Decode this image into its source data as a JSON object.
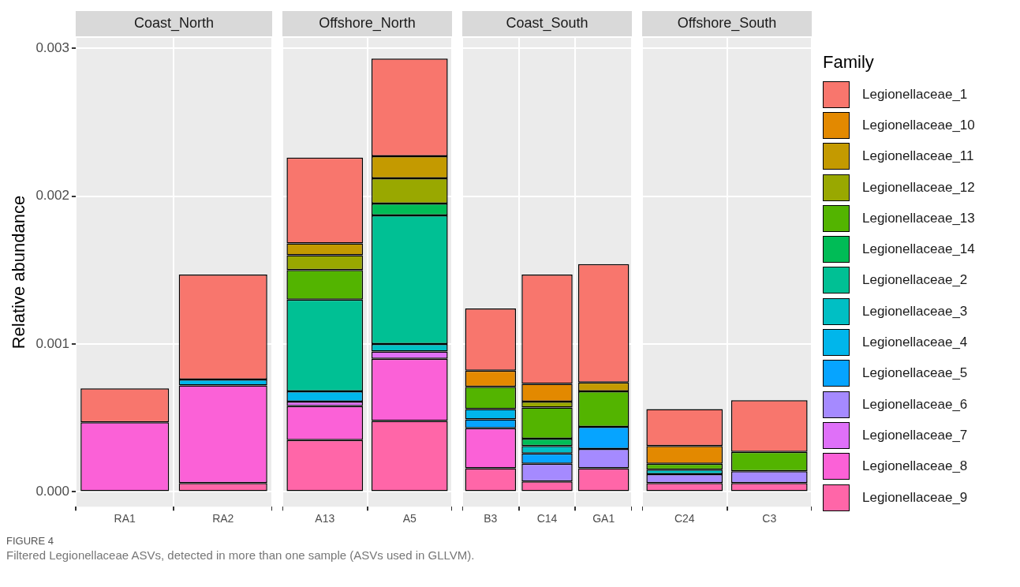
{
  "chart_data": [
    {
      "type": "bar",
      "stacked": true,
      "title": "Coast_North",
      "ylabel": "Relative abundance",
      "categories": [
        "RA1",
        "RA2"
      ],
      "ylim": [
        -0.0001,
        0.00307
      ],
      "yticks": [
        {
          "value": 0,
          "label": "0.000"
        },
        {
          "value": 0.001,
          "label": "0.001"
        },
        {
          "value": 0.002,
          "label": "0.002"
        },
        {
          "value": 0.003,
          "label": "0.003"
        }
      ],
      "grid": true,
      "annotations": [
        "FIGURE 4",
        "Filtered Legionellaceae ASVs, detected in more than one sample (ASVs used in GLLVM)."
      ],
      "series": [
        {
          "color": "#ff66a8",
          "values": [
            null,
            6e-05
          ]
        },
        {
          "color": "#fb61d7",
          "values": [
            0.00047,
            0.00066
          ]
        },
        {
          "color": "#df70f8",
          "values": [
            null,
            null
          ]
        },
        {
          "color": "#a58aff",
          "values": [
            null,
            null
          ]
        },
        {
          "color": "#06a4ff",
          "values": [
            null,
            null
          ]
        },
        {
          "color": "#00b6eb",
          "values": [
            null,
            4e-05
          ]
        },
        {
          "color": "#00bfc4",
          "values": [
            null,
            null
          ]
        },
        {
          "color": "#00c094",
          "values": [
            null,
            null
          ]
        },
        {
          "color": "#00bc56",
          "values": [
            null,
            null
          ]
        },
        {
          "color": "#53b400",
          "values": [
            null,
            null
          ]
        },
        {
          "color": "#99a800",
          "values": [
            null,
            null
          ]
        },
        {
          "color": "#c49a00",
          "values": [
            null,
            null
          ]
        },
        {
          "color": "#e38900",
          "values": [
            null,
            null
          ]
        },
        {
          "color": "#f8766d",
          "values": [
            0.00023,
            0.00071
          ]
        }
      ]
    },
    {
      "type": "bar",
      "stacked": true,
      "title": "Offshore_North",
      "categories": [
        "A13",
        "A5"
      ],
      "ylim": [
        -0.0001,
        0.00307
      ],
      "yticks": [
        0,
        0.001,
        0.002,
        0.003
      ],
      "tick_labels": "x",
      "grid": true,
      "series": [
        {
          "color": "#ff66a8",
          "values": [
            0.00035,
            0.00048
          ]
        },
        {
          "color": "#fb61d7",
          "values": [
            0.00023,
            0.00042
          ]
        },
        {
          "color": "#df70f8",
          "values": [
            3e-05,
            5e-05
          ]
        },
        {
          "color": "#a58aff",
          "values": [
            null,
            null
          ]
        },
        {
          "color": "#06a4ff",
          "values": [
            null,
            null
          ]
        },
        {
          "color": "#00b6eb",
          "values": [
            7e-05,
            null
          ]
        },
        {
          "color": "#00bfc4",
          "values": [
            null,
            5e-05
          ]
        },
        {
          "color": "#00c094",
          "values": [
            0.00062,
            0.00087
          ]
        },
        {
          "color": "#00bc56",
          "values": [
            null,
            8e-05
          ]
        },
        {
          "color": "#53b400",
          "values": [
            0.0002,
            null
          ]
        },
        {
          "color": "#99a800",
          "values": [
            0.0001,
            0.00017
          ]
        },
        {
          "color": "#c49a00",
          "values": [
            8e-05,
            0.00015
          ]
        },
        {
          "color": "#e38900",
          "values": [
            null,
            null
          ]
        },
        {
          "color": "#f8766d",
          "values": [
            0.00058,
            0.00066
          ]
        }
      ]
    },
    {
      "type": "bar",
      "stacked": true,
      "title": "Coast_South",
      "categories": [
        "B3",
        "C14",
        "GA1"
      ],
      "ylim": [
        -0.0001,
        0.00307
      ],
      "yticks": [
        0,
        0.001,
        0.002,
        0.003
      ],
      "tick_labels": "x",
      "grid": true,
      "series": [
        {
          "color": "#ff66a8",
          "values": [
            0.00016,
            7e-05,
            0.00016
          ]
        },
        {
          "color": "#fb61d7",
          "values": [
            0.00027,
            null,
            null
          ]
        },
        {
          "color": "#df70f8",
          "values": [
            null,
            null,
            null
          ]
        },
        {
          "color": "#a58aff",
          "values": [
            null,
            0.00012,
            0.00013
          ]
        },
        {
          "color": "#06a4ff",
          "values": [
            6e-05,
            7e-05,
            0.00015
          ]
        },
        {
          "color": "#00b6eb",
          "values": [
            7e-05,
            null,
            null
          ]
        },
        {
          "color": "#00bfc4",
          "values": [
            null,
            5e-05,
            null
          ]
        },
        {
          "color": "#00c094",
          "values": [
            null,
            null,
            null
          ]
        },
        {
          "color": "#00bc56",
          "values": [
            null,
            5e-05,
            null
          ]
        },
        {
          "color": "#53b400",
          "values": [
            0.00015,
            0.00021,
            0.00024
          ]
        },
        {
          "color": "#99a800",
          "values": [
            null,
            4e-05,
            null
          ]
        },
        {
          "color": "#c49a00",
          "values": [
            null,
            null,
            6e-05
          ]
        },
        {
          "color": "#e38900",
          "values": [
            0.00011,
            0.00012,
            null
          ]
        },
        {
          "color": "#f8766d",
          "values": [
            0.00042,
            0.00074,
            0.0008
          ]
        }
      ]
    },
    {
      "type": "bar",
      "stacked": true,
      "title": "Offshore_South",
      "categories": [
        "C24",
        "C3"
      ],
      "ylim": [
        -0.0001,
        0.00307
      ],
      "yticks": [
        0,
        0.001,
        0.002,
        0.003
      ],
      "tick_labels": "x",
      "grid": true,
      "legend": "right",
      "legend_title": "Family",
      "series": [
        {
          "name": "Legionellaceae_9",
          "color": "#ff66a8",
          "values": [
            6e-05,
            6e-05
          ]
        },
        {
          "name": "Legionellaceae_8",
          "color": "#fb61d7",
          "values": [
            null,
            null
          ]
        },
        {
          "name": "Legionellaceae_7",
          "color": "#df70f8",
          "values": [
            null,
            null
          ]
        },
        {
          "name": "Legionellaceae_6",
          "color": "#a58aff",
          "values": [
            6e-05,
            8e-05
          ]
        },
        {
          "name": "Legionellaceae_5",
          "color": "#06a4ff",
          "values": [
            null,
            null
          ]
        },
        {
          "name": "Legionellaceae_4",
          "color": "#00b6eb",
          "values": [
            null,
            null
          ]
        },
        {
          "name": "Legionellaceae_3",
          "color": "#00bfc4",
          "values": [
            3e-05,
            null
          ]
        },
        {
          "name": "Legionellaceae_2",
          "color": "#00c094",
          "values": [
            null,
            null
          ]
        },
        {
          "name": "Legionellaceae_14",
          "color": "#00bc56",
          "values": [
            null,
            null
          ]
        },
        {
          "name": "Legionellaceae_13",
          "color": "#53b400",
          "values": [
            4e-05,
            0.00013
          ]
        },
        {
          "name": "Legionellaceae_12",
          "color": "#99a800",
          "values": [
            null,
            null
          ]
        },
        {
          "name": "Legionellaceae_11",
          "color": "#c49a00",
          "values": [
            null,
            null
          ]
        },
        {
          "name": "Legionellaceae_10",
          "color": "#e38900",
          "values": [
            0.00012,
            null
          ]
        },
        {
          "name": "Legionellaceae_1",
          "color": "#f8766d",
          "values": [
            0.00025,
            0.00035
          ]
        }
      ]
    }
  ]
}
